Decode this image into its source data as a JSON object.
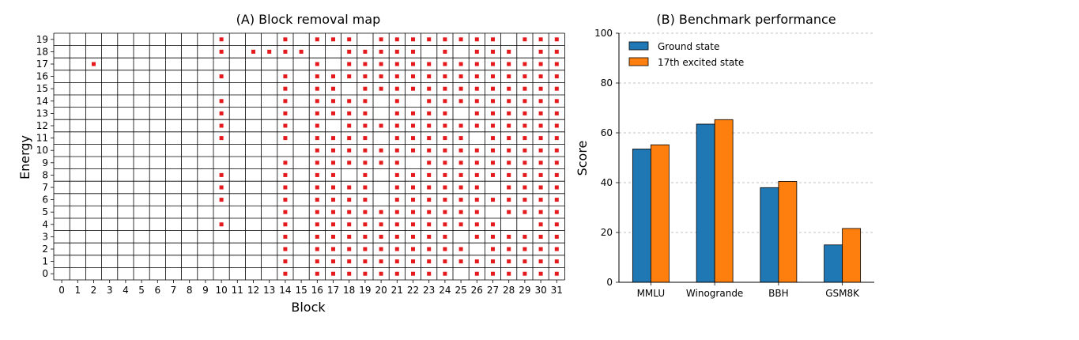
{
  "chart_data": [
    {
      "type": "heatmap",
      "title": "(A) Block removal map",
      "xlabel": "Block",
      "ylabel": "Energy",
      "x_ticks": [
        "0",
        "1",
        "2",
        "3",
        "4",
        "5",
        "6",
        "7",
        "8",
        "9",
        "10",
        "11",
        "12",
        "13",
        "14",
        "15",
        "16",
        "17",
        "18",
        "19",
        "20",
        "21",
        "22",
        "23",
        "24",
        "25",
        "26",
        "27",
        "28",
        "29",
        "30",
        "31"
      ],
      "y_ticks": [
        "0",
        "1",
        "2",
        "3",
        "4",
        "5",
        "6",
        "7",
        "8",
        "9",
        "10",
        "11",
        "12",
        "13",
        "14",
        "15",
        "16",
        "17",
        "18",
        "19"
      ],
      "marker_color": "#e41a1c",
      "removed_blocks_by_energy": {
        "19": [
          10,
          14,
          16,
          17,
          18,
          20,
          21,
          22,
          23,
          24,
          25,
          26,
          27,
          29,
          30,
          31
        ],
        "18": [
          10,
          12,
          13,
          14,
          15,
          18,
          19,
          20,
          21,
          22,
          24,
          26,
          27,
          28,
          30,
          31
        ],
        "17": [
          2,
          16,
          18,
          19,
          20,
          21,
          22,
          23,
          24,
          25,
          26,
          27,
          28,
          29,
          30,
          31
        ],
        "16": [
          10,
          14,
          16,
          17,
          18,
          19,
          20,
          21,
          22,
          23,
          24,
          25,
          26,
          27,
          28,
          29,
          30,
          31
        ],
        "15": [
          14,
          16,
          17,
          19,
          20,
          21,
          22,
          23,
          24,
          25,
          26,
          27,
          28,
          29,
          30,
          31
        ],
        "14": [
          10,
          14,
          16,
          17,
          18,
          19,
          21,
          23,
          24,
          25,
          26,
          27,
          28,
          29,
          30,
          31
        ],
        "13": [
          10,
          14,
          16,
          17,
          18,
          19,
          21,
          22,
          23,
          24,
          26,
          27,
          28,
          29,
          30,
          31
        ],
        "12": [
          10,
          14,
          16,
          18,
          19,
          20,
          21,
          22,
          23,
          24,
          25,
          26,
          27,
          28,
          29,
          30,
          31
        ],
        "11": [
          10,
          14,
          16,
          17,
          18,
          19,
          21,
          22,
          23,
          24,
          25,
          27,
          28,
          29,
          30,
          31
        ],
        "10": [
          16,
          17,
          18,
          19,
          20,
          21,
          22,
          23,
          24,
          25,
          26,
          27,
          28,
          29,
          30,
          31
        ],
        "9": [
          14,
          16,
          17,
          18,
          19,
          20,
          21,
          23,
          24,
          25,
          26,
          27,
          28,
          29,
          30,
          31
        ],
        "8": [
          10,
          14,
          16,
          17,
          19,
          21,
          22,
          23,
          24,
          25,
          26,
          27,
          28,
          29,
          30,
          31
        ],
        "7": [
          10,
          14,
          16,
          17,
          18,
          19,
          21,
          22,
          23,
          24,
          25,
          26,
          28,
          29,
          30,
          31
        ],
        "6": [
          10,
          14,
          16,
          17,
          18,
          19,
          21,
          22,
          23,
          24,
          25,
          26,
          27,
          28,
          29,
          30,
          31
        ],
        "5": [
          14,
          16,
          17,
          18,
          19,
          20,
          21,
          22,
          23,
          24,
          25,
          26,
          28,
          29,
          30,
          31
        ],
        "4": [
          10,
          14,
          16,
          17,
          18,
          19,
          20,
          21,
          22,
          23,
          24,
          25,
          26,
          27,
          30,
          31
        ],
        "3": [
          14,
          16,
          17,
          18,
          19,
          20,
          21,
          22,
          23,
          24,
          26,
          27,
          28,
          29,
          30,
          31
        ],
        "2": [
          14,
          16,
          17,
          18,
          19,
          20,
          21,
          22,
          23,
          24,
          25,
          27,
          28,
          29,
          30,
          31
        ],
        "1": [
          14,
          16,
          17,
          18,
          19,
          20,
          21,
          22,
          23,
          24,
          25,
          26,
          27,
          28,
          29,
          30,
          31
        ],
        "0": [
          14,
          16,
          17,
          18,
          19,
          20,
          21,
          22,
          23,
          24,
          26,
          27,
          28,
          29,
          30,
          31
        ]
      }
    },
    {
      "type": "bar",
      "title": "(B) Benchmark performance",
      "xlabel": "",
      "ylabel": "Score",
      "categories": [
        "MMLU",
        "Winogrande",
        "BBH",
        "GSM8K"
      ],
      "series": [
        {
          "name": "Ground state",
          "values": [
            53.5,
            63.5,
            38.0,
            15.0
          ],
          "color": "#1f77b4"
        },
        {
          "name": "17th excited state",
          "values": [
            55.2,
            65.3,
            40.5,
            21.6
          ],
          "color": "#ff7f0e"
        }
      ],
      "ylim": [
        0,
        100
      ],
      "y_ticks": [
        0,
        20,
        40,
        60,
        80,
        100
      ],
      "grid": "y-dashed",
      "legend": "top-left"
    }
  ]
}
